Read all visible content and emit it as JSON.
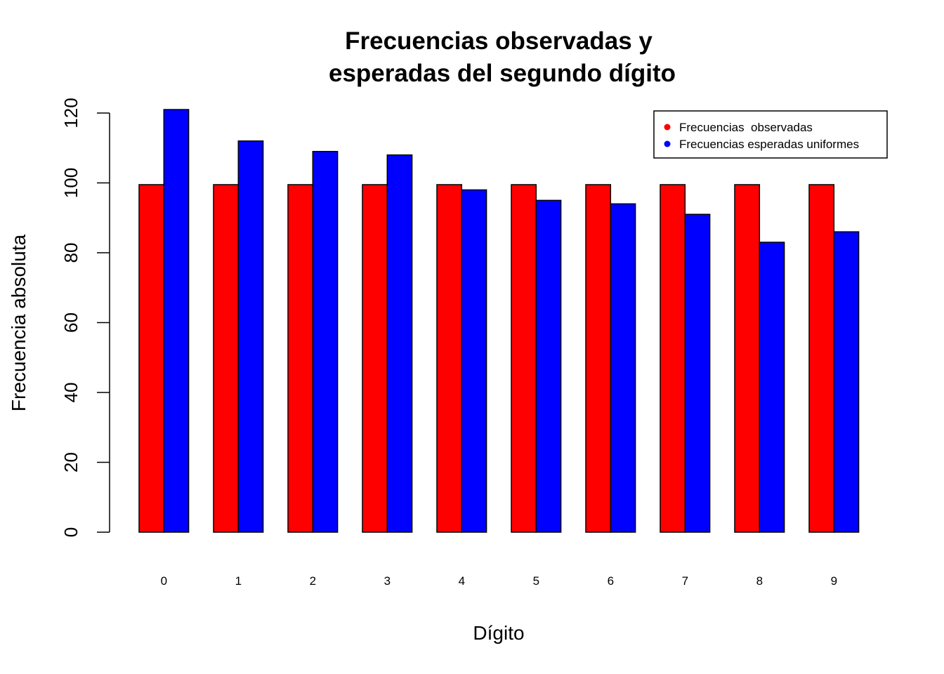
{
  "chart_data": {
    "type": "bar",
    "title_lines": [
      "Frecuencias observadas y",
      "esperadas del segundo dígito"
    ],
    "xlabel": "Dígito",
    "ylabel": "Frecuencia absoluta",
    "categories": [
      "0",
      "1",
      "2",
      "3",
      "4",
      "5",
      "6",
      "7",
      "8",
      "9"
    ],
    "ylim": [
      0,
      120
    ],
    "yticks": [
      "0",
      "20",
      "40",
      "60",
      "80",
      "100",
      "120"
    ],
    "grid": false,
    "legend_position": "top-right",
    "series": [
      {
        "name": "Frecuencias  observadas",
        "color": "#ff0000",
        "values": [
          99.5,
          99.5,
          99.5,
          99.5,
          99.5,
          99.5,
          99.5,
          99.5,
          99.5,
          99.5
        ]
      },
      {
        "name": "Frecuencias esperadas uniformes",
        "color": "#0000ff",
        "values": [
          121,
          112,
          109,
          108,
          98,
          95,
          94,
          91,
          83,
          86
        ]
      }
    ]
  }
}
